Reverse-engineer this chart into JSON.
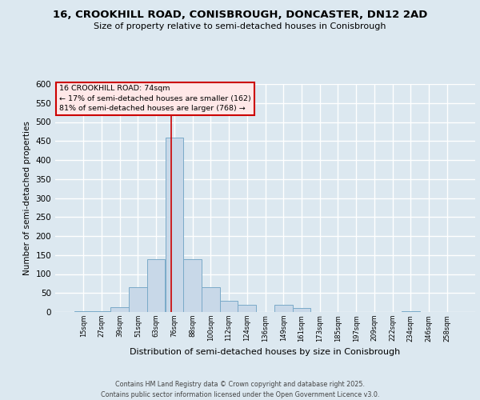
{
  "title_line1": "16, CROOKHILL ROAD, CONISBROUGH, DONCASTER, DN12 2AD",
  "title_line2": "Size of property relative to semi-detached houses in Conisbrough",
  "xlabel": "Distribution of semi-detached houses by size in Conisbrough",
  "ylabel": "Number of semi-detached properties",
  "bar_color": "#c8d8e8",
  "bar_edge_color": "#7aaac8",
  "background_color": "#dce8f0",
  "grid_color": "#ffffff",
  "categories": [
    "15sqm",
    "27sqm",
    "39sqm",
    "51sqm",
    "63sqm",
    "76sqm",
    "88sqm",
    "100sqm",
    "112sqm",
    "124sqm",
    "136sqm",
    "149sqm",
    "161sqm",
    "173sqm",
    "185sqm",
    "197sqm",
    "209sqm",
    "222sqm",
    "234sqm",
    "246sqm",
    "258sqm"
  ],
  "values": [
    2,
    3,
    12,
    65,
    140,
    460,
    140,
    65,
    30,
    20,
    0,
    20,
    10,
    0,
    0,
    0,
    0,
    0,
    2,
    0,
    0
  ],
  "annotation_line1": "16 CROOKHILL ROAD: 74sqm",
  "annotation_line2": "← 17% of semi-detached houses are smaller (162)",
  "annotation_line3": "81% of semi-detached houses are larger (768) →",
  "vline_color": "#cc0000",
  "annotation_box_facecolor": "#ffe8e8",
  "annotation_box_edgecolor": "#cc0000",
  "vline_position": 4.85,
  "ylim_max": 600,
  "yticks": [
    0,
    50,
    100,
    150,
    200,
    250,
    300,
    350,
    400,
    450,
    500,
    550,
    600
  ],
  "footer_line1": "Contains HM Land Registry data © Crown copyright and database right 2025.",
  "footer_line2": "Contains public sector information licensed under the Open Government Licence v3.0."
}
